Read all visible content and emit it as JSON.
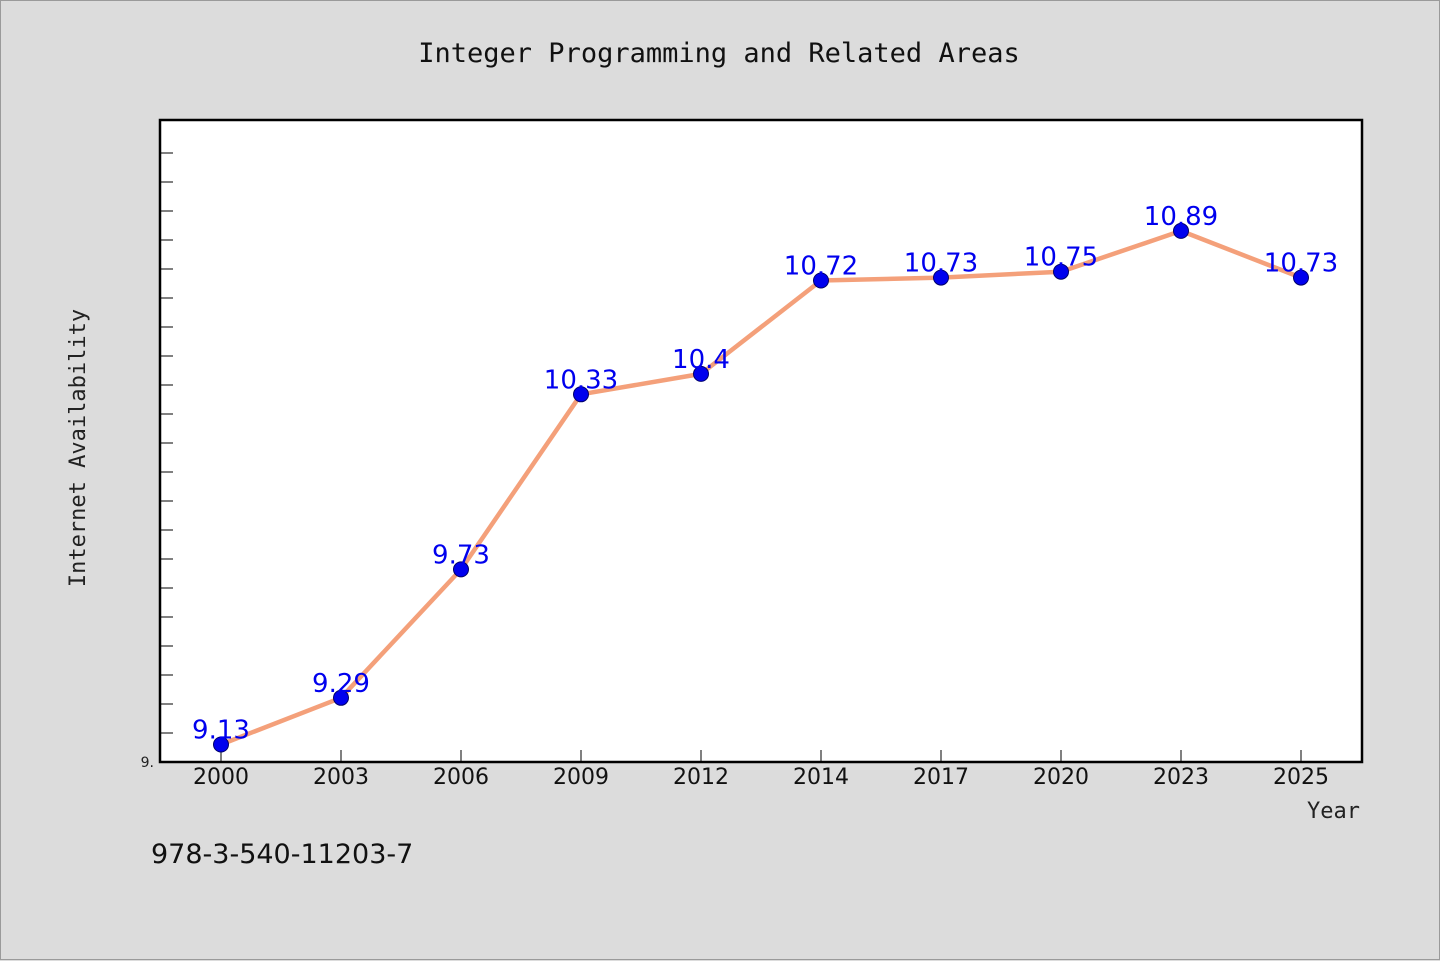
{
  "chart_data": {
    "type": "line",
    "title": "Integer Programming and Related Areas",
    "xlabel": "Year",
    "ylabel": "Internet Availability",
    "categories": [
      "2000",
      "2003",
      "2006",
      "2009",
      "2012",
      "2014",
      "2017",
      "2020",
      "2023",
      "2025"
    ],
    "series": [
      {
        "values": [
          9.13,
          9.29,
          9.73,
          10.33,
          10.4,
          10.72,
          10.73,
          10.75,
          10.89,
          10.73
        ],
        "labels": [
          "9.13",
          "9.29",
          "9.73",
          "10.33",
          "10.4",
          "10.72",
          "10.73",
          "10.75",
          "10.89",
          "10.73"
        ],
        "line_color": "#f4a07a",
        "marker_color": "#0000ee"
      }
    ],
    "ylim": [
      9.07,
      11.27
    ],
    "yticks": [
      9.07
    ],
    "ytick_labels": [
      "9."
    ],
    "grid": false,
    "legend": "none"
  },
  "footnote": "978-3-540-11203-7",
  "colors": {
    "background": "#dcdcdc",
    "plot_background": "#ffffff",
    "line": "#f4a07a",
    "marker": "#0000ee",
    "label": "#0000ee"
  }
}
